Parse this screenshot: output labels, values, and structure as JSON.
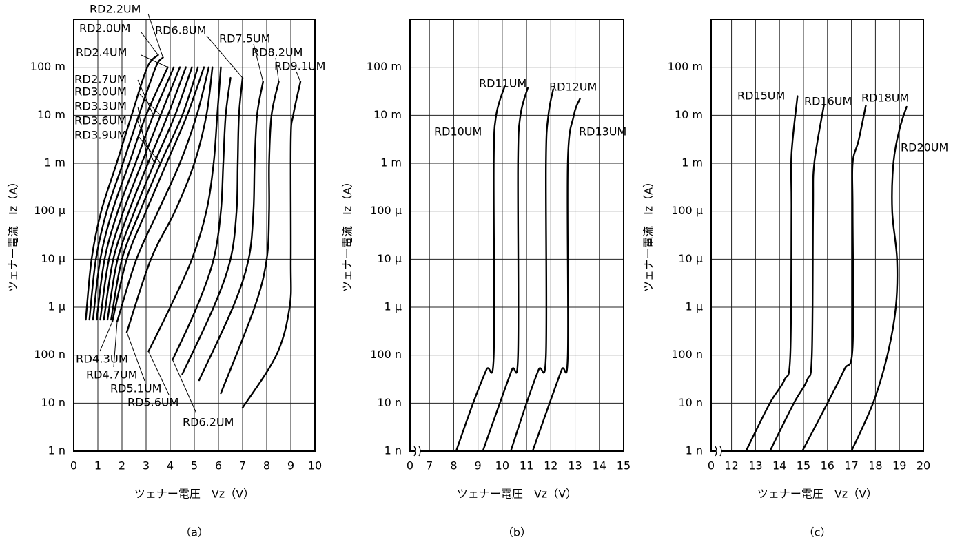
{
  "chart_data": [
    {
      "type": "line",
      "caption": "（a）",
      "xlabel": "ツェナー電圧　Vz（V）",
      "ylabel": "ツェナー電流　Iz（A）",
      "color": "#000000",
      "ylog": true,
      "grid": true,
      "xlim": [
        0,
        10
      ],
      "xticks": [
        0,
        1,
        2,
        3,
        4,
        5,
        6,
        7,
        8,
        9,
        10
      ],
      "ylim": [
        1e-09,
        1
      ],
      "yticks": [
        {
          "value": 1e-09,
          "label": "1 n"
        },
        {
          "value": 1e-08,
          "label": "10 n"
        },
        {
          "value": 1e-07,
          "label": "100 n"
        },
        {
          "value": 1e-06,
          "label": "1 μ"
        },
        {
          "value": 1e-05,
          "label": "10 μ"
        },
        {
          "value": 0.0001,
          "label": "100 μ"
        },
        {
          "value": 0.001,
          "label": "1 m"
        },
        {
          "value": 0.01,
          "label": "10 m"
        },
        {
          "value": 0.1,
          "label": "100 m"
        }
      ],
      "series": [
        {
          "name": "RD2.0UM",
          "x": [
            0.5,
            0.74,
            1.14,
            1.78,
            2.4,
            3.05,
            3.5
          ],
          "values": [
            5.5e-07,
            1e-05,
            0.0001,
            0.001,
            0.01,
            0.1,
            0.18
          ]
        },
        {
          "name": "RD2.2UM",
          "x": [
            0.65,
            0.92,
            1.37,
            2.04,
            2.7,
            3.4,
            3.7
          ],
          "values": [
            5.5e-07,
            1e-05,
            0.0001,
            0.001,
            0.01,
            0.1,
            0.16
          ]
        },
        {
          "name": "RD2.4UM",
          "x": [
            0.8,
            1.1,
            1.6,
            2.3,
            3.0,
            3.9
          ],
          "values": [
            5.5e-07,
            1e-05,
            0.0001,
            0.001,
            0.01,
            0.1
          ]
        },
        {
          "name": "RD2.7UM",
          "x": [
            0.95,
            1.28,
            1.83,
            2.56,
            3.3,
            4.15
          ],
          "values": [
            5.5e-07,
            1e-05,
            0.0001,
            0.001,
            0.01,
            0.1
          ]
        },
        {
          "name": "RD3.0UM",
          "x": [
            1.1,
            1.46,
            2.06,
            2.82,
            3.6,
            4.4
          ],
          "values": [
            5.5e-07,
            1e-05,
            0.0001,
            0.001,
            0.01,
            0.1
          ]
        },
        {
          "name": "RD3.3UM",
          "x": [
            1.25,
            1.64,
            2.29,
            3.08,
            3.9,
            4.65
          ],
          "values": [
            5.5e-07,
            1e-05,
            0.0001,
            0.001,
            0.01,
            0.1
          ]
        },
        {
          "name": "RD3.6UM",
          "x": [
            1.4,
            1.82,
            2.52,
            3.34,
            4.2,
            4.9
          ],
          "values": [
            5.5e-07,
            1e-05,
            0.0001,
            0.001,
            0.01,
            0.1
          ]
        },
        {
          "name": "RD3.9UM",
          "x": [
            1.55,
            2.0,
            2.75,
            3.6,
            4.5,
            5.15
          ],
          "values": [
            5.5e-07,
            1e-05,
            0.0001,
            0.001,
            0.01,
            0.1
          ]
        },
        {
          "name": "RD4.3UM",
          "x": [
            1.6,
            2.2,
            3.0,
            3.85,
            4.7,
            5.4
          ],
          "values": [
            5e-07,
            1e-05,
            0.0001,
            0.001,
            0.01,
            0.1
          ]
        },
        {
          "name": "RD4.7UM",
          "x": [
            1.8,
            2.6,
            3.5,
            4.4,
            5.1,
            5.6
          ],
          "values": [
            5e-07,
            1e-05,
            0.0001,
            0.001,
            0.01,
            0.1
          ]
        },
        {
          "name": "RD5.1UM",
          "x": [
            2.2,
            3.2,
            4.2,
            5.0,
            5.5,
            5.75
          ],
          "values": [
            3e-07,
            1e-05,
            0.0001,
            0.001,
            0.01,
            0.1
          ]
        },
        {
          "name": "RD5.6UM",
          "x": [
            3.1,
            4.0,
            4.9,
            5.5,
            5.8,
            5.95,
            6.1
          ],
          "values": [
            1.2e-07,
            1e-06,
            1e-05,
            0.0001,
            0.001,
            0.01,
            0.1
          ]
        },
        {
          "name": "RD6.2UM",
          "x": [
            4.1,
            5.1,
            5.8,
            6.1,
            6.2,
            6.3,
            6.5
          ],
          "values": [
            8e-08,
            1e-06,
            1e-05,
            0.0001,
            0.001,
            0.01,
            0.06
          ]
        },
        {
          "name": "RD6.8UM",
          "x": [
            4.5,
            5.8,
            6.5,
            6.75,
            6.8,
            6.85,
            7.0
          ],
          "values": [
            4e-08,
            1e-06,
            1e-05,
            0.0001,
            0.001,
            0.01,
            0.06
          ]
        },
        {
          "name": "RD7.5UM",
          "x": [
            5.2,
            6.6,
            7.25,
            7.45,
            7.5,
            7.6,
            7.85
          ],
          "values": [
            3e-08,
            1e-06,
            1e-05,
            0.0001,
            0.001,
            0.01,
            0.05
          ]
        },
        {
          "name": "RD8.2UM",
          "x": [
            6.1,
            7.5,
            8.0,
            8.1,
            8.1,
            8.2,
            8.5
          ],
          "values": [
            1.6e-08,
            1e-06,
            1e-05,
            0.0001,
            0.001,
            0.01,
            0.05
          ]
        },
        {
          "name": "RD9.1UM",
          "x": [
            7.0,
            8.4,
            8.95,
            9.0,
            9.0,
            9.1,
            9.4
          ],
          "values": [
            8e-09,
            1e-07,
            1e-06,
            1e-05,
            0.003,
            0.01,
            0.05
          ]
        }
      ]
    },
    {
      "type": "line",
      "caption": "（b）",
      "xlabel": "ツェナー電圧　Vz（V）",
      "ylabel": "ツェナー電流　Iz（A）",
      "color": "#000000",
      "ylog": true,
      "grid": true,
      "axis_break": true,
      "x_origin_label": "0",
      "xlim": [
        6.2,
        15
      ],
      "xticks": [
        7,
        8,
        9,
        10,
        11,
        12,
        13,
        14,
        15
      ],
      "ylim": [
        1e-09,
        1
      ],
      "yticks": [
        {
          "value": 1e-09,
          "label": "1 n"
        },
        {
          "value": 1e-08,
          "label": "10 n"
        },
        {
          "value": 1e-07,
          "label": "100 n"
        },
        {
          "value": 1e-06,
          "label": "1 μ"
        },
        {
          "value": 1e-05,
          "label": "10 μ"
        },
        {
          "value": 0.0001,
          "label": "100 μ"
        },
        {
          "value": 0.001,
          "label": "1 m"
        },
        {
          "value": 0.01,
          "label": "10 m"
        },
        {
          "value": 0.1,
          "label": "100 m"
        }
      ],
      "series": [
        {
          "name": "RD10UM",
          "x": [
            8.1,
            8.8,
            9.35,
            9.65,
            9.65,
            9.75,
            10.1
          ],
          "values": [
            1e-09,
            1e-08,
            5e-08,
            1e-07,
            0.001,
            0.01,
            0.04
          ]
        },
        {
          "name": "RD11UM",
          "x": [
            9.2,
            9.9,
            10.4,
            10.65,
            10.65,
            10.75,
            11.05
          ],
          "values": [
            1e-09,
            1e-08,
            5e-08,
            1e-07,
            0.001,
            0.01,
            0.037
          ]
        },
        {
          "name": "RD12UM",
          "x": [
            10.35,
            11.0,
            11.5,
            11.8,
            11.8,
            11.9,
            12.1
          ],
          "values": [
            1e-09,
            1e-08,
            5e-08,
            1e-07,
            0.001,
            0.01,
            0.035
          ]
        },
        {
          "name": "RD13UM",
          "x": [
            11.25,
            11.95,
            12.45,
            12.7,
            12.7,
            12.95,
            13.2
          ],
          "values": [
            1e-09,
            1e-08,
            5e-08,
            1e-07,
            0.001,
            0.01,
            0.022
          ]
        }
      ]
    },
    {
      "type": "line",
      "caption": "（c）",
      "xlabel": "ツェナー電圧　Vz（V）",
      "ylabel": "ツェナー電流　Iz（A）",
      "color": "#000000",
      "ylog": true,
      "grid": true,
      "axis_break": true,
      "x_origin_label": "0",
      "xlim": [
        11.15,
        20
      ],
      "xticks": [
        12,
        13,
        14,
        15,
        16,
        17,
        18,
        19,
        20
      ],
      "ylim": [
        1e-09,
        1
      ],
      "yticks": [
        {
          "value": 1e-09,
          "label": "1 n"
        },
        {
          "value": 1e-08,
          "label": "10 n"
        },
        {
          "value": 1e-07,
          "label": "100 n"
        },
        {
          "value": 1e-06,
          "label": "1 μ"
        },
        {
          "value": 1e-05,
          "label": "10 μ"
        },
        {
          "value": 0.0001,
          "label": "100 μ"
        },
        {
          "value": 0.001,
          "label": "1 m"
        },
        {
          "value": 0.01,
          "label": "10 m"
        },
        {
          "value": 0.1,
          "label": "100 m"
        }
      ],
      "series": [
        {
          "name": "RD15UM",
          "x": [
            12.6,
            13.6,
            14.2,
            14.45,
            14.5,
            14.5,
            14.75
          ],
          "values": [
            1e-09,
            1e-08,
            3e-08,
            1e-07,
            0.0001,
            0.0015,
            0.025
          ]
        },
        {
          "name": "RD16UM",
          "x": [
            13.6,
            14.6,
            15.15,
            15.35,
            15.4,
            15.45,
            15.85
          ],
          "values": [
            1e-09,
            1e-08,
            3e-08,
            1e-07,
            0.0001,
            0.001,
            0.016
          ]
        },
        {
          "name": "RD18UM",
          "x": [
            14.95,
            16.0,
            16.7,
            17.05,
            17.05,
            17.05,
            17.3,
            17.6
          ],
          "values": [
            1e-09,
            1e-08,
            5e-08,
            1.5e-07,
            0.0001,
            0.001,
            0.003,
            0.016
          ]
        },
        {
          "name": "RD20UM",
          "x": [
            17.0,
            17.9,
            18.5,
            18.85,
            18.9,
            18.7,
            18.75,
            19.0,
            19.3
          ],
          "values": [
            1e-09,
            1e-08,
            1e-07,
            1e-06,
            1e-05,
            0.0001,
            0.001,
            0.005,
            0.015
          ]
        }
      ]
    }
  ]
}
